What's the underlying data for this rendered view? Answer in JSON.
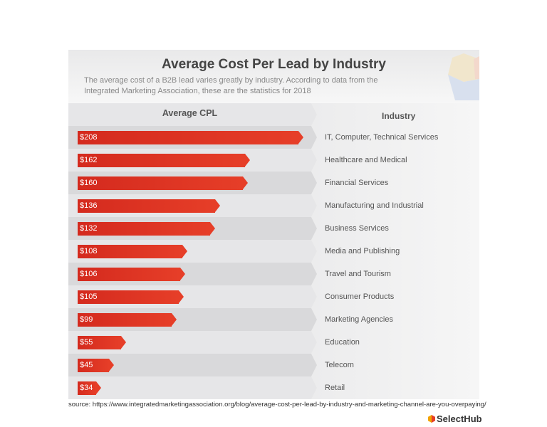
{
  "title": "Average Cost Per Lead by Industry",
  "subtitle": "The average cost of a B2B lead varies greatly by industry. According to data from the Integrated Marketing Association, these are the statistics for 2018",
  "source": "source: https://www.integratedmarketingassociation.org/blog/average-cost-per-lead-by-industry-and-marketing-channel-are-you-overpaying/",
  "logo": "SelectHub",
  "colors": {
    "bar": "#e03624",
    "row_dark": "#d9d9db",
    "row_light": "#e6e6e8"
  },
  "chart_data": {
    "type": "bar",
    "orientation": "horizontal",
    "title": "Average Cost Per Lead by Industry",
    "column_headers": {
      "value": "Average CPL",
      "category": "Industry"
    },
    "categories": [
      "IT, Computer, Technical Services",
      "Healthcare and Medical",
      "Financial Services",
      "Manufacturing and Industrial",
      "Business Services",
      "Media and Publishing",
      "Travel and Tourism",
      "Consumer Products",
      "Marketing Agencies",
      "Education",
      "Telecom",
      "Retail"
    ],
    "values": [
      208,
      162,
      160,
      136,
      132,
      108,
      106,
      105,
      99,
      55,
      45,
      34
    ],
    "labels": [
      "$208",
      "$162",
      "$160",
      "$136",
      "$132",
      "$108",
      "$106",
      "$105",
      "$99",
      "$55",
      "$45",
      "$34"
    ],
    "unit": "USD"
  }
}
